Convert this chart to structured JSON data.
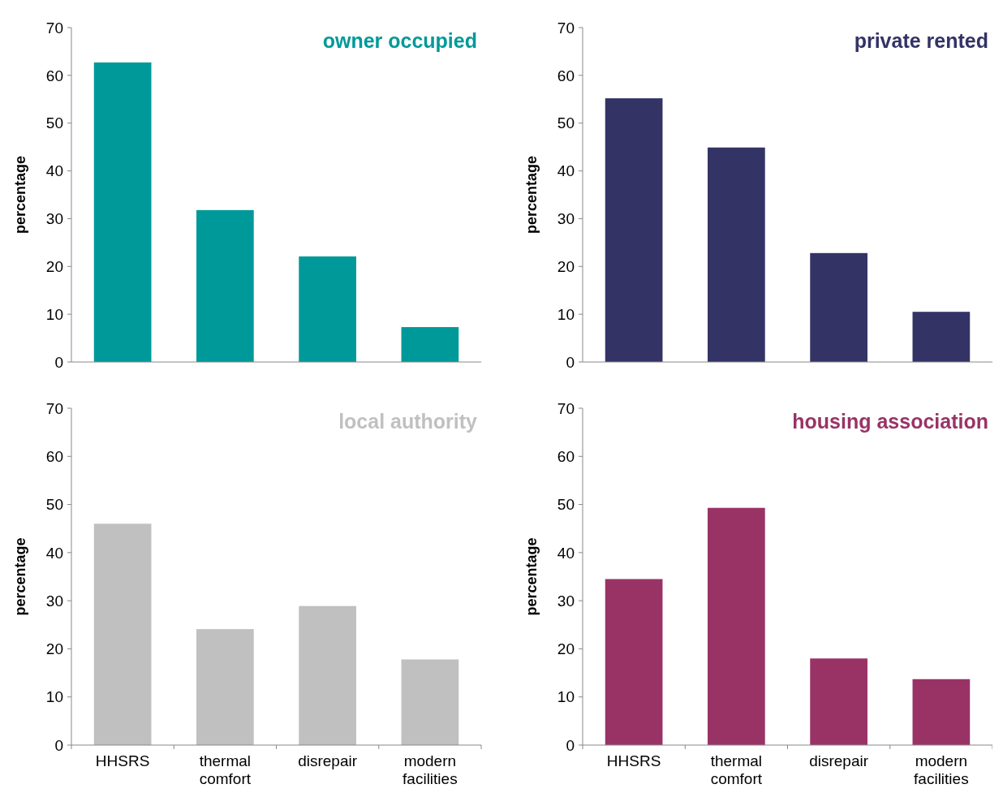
{
  "chart_data": [
    {
      "type": "bar",
      "title": "owner occupied",
      "ylabel": "percentage",
      "categories": [
        null,
        null,
        null,
        null
      ],
      "values": [
        62.7,
        31.8,
        22.1,
        7.3
      ],
      "color": "#009999",
      "ylim": [
        0,
        70
      ],
      "yticks": [
        0,
        10,
        20,
        30,
        40,
        50,
        60,
        70
      ],
      "tick_labels": "y"
    },
    {
      "type": "bar",
      "title": "private rented",
      "ylabel": "percentage",
      "categories": [
        null,
        null,
        null,
        null
      ],
      "values": [
        55.2,
        44.9,
        22.8,
        10.5
      ],
      "color": "#333366",
      "ylim": [
        0,
        70
      ],
      "yticks": [
        0,
        10,
        20,
        30,
        40,
        50,
        60,
        70
      ],
      "tick_labels": "y"
    },
    {
      "type": "bar",
      "title": "local authority",
      "ylabel": "percentage",
      "categories": [
        "HHSRS",
        "thermal comfort",
        "disrepair",
        "modern facilities"
      ],
      "values": [
        46.0,
        24.1,
        28.9,
        17.8
      ],
      "color": "#c0c0c0",
      "ylim": [
        0,
        70
      ],
      "yticks": [
        0,
        10,
        20,
        30,
        40,
        50,
        60,
        70
      ]
    },
    {
      "type": "bar",
      "title": "housing association",
      "ylabel": "percentage",
      "categories": [
        "HHSRS",
        "thermal comfort",
        "disrepair",
        "modern facilities"
      ],
      "values": [
        34.5,
        49.3,
        18.0,
        13.7
      ],
      "color": "#993366",
      "ylim": [
        0,
        70
      ],
      "yticks": [
        0,
        10,
        20,
        30,
        40,
        50,
        60,
        70
      ]
    }
  ]
}
